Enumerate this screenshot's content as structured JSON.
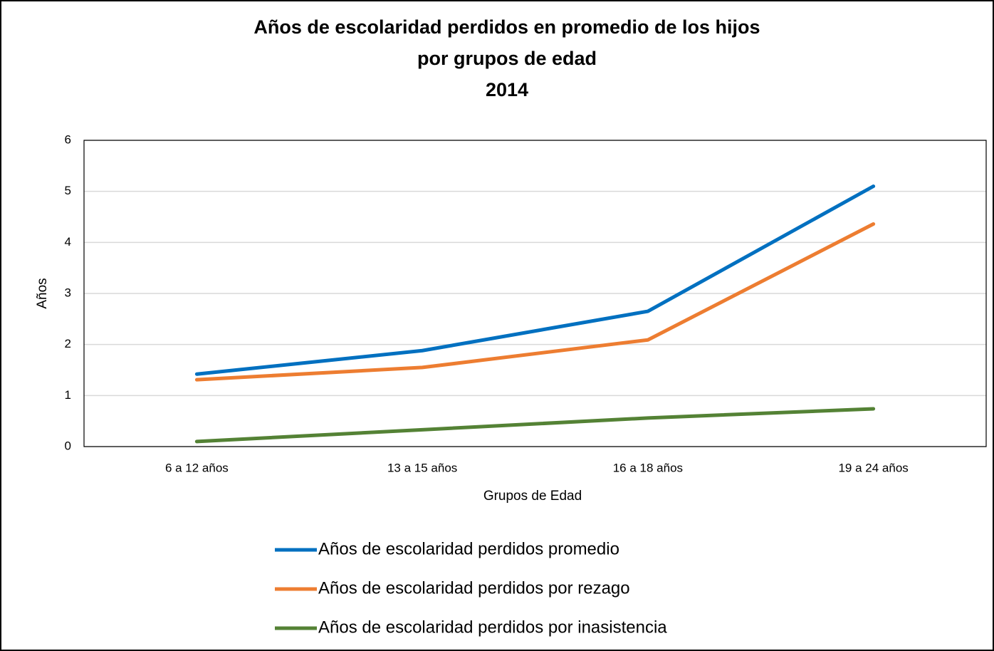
{
  "chart_data": {
    "type": "line",
    "title": [
      "Años de escolaridad perdidos en promedio de los hijos",
      "por grupos de edad",
      "2014"
    ],
    "x_label": "Grupos de Edad",
    "y_label": "Años",
    "categories": [
      "6 a 12 años",
      "13 a 15 años",
      "16 a 18 años",
      "19 a 24 años"
    ],
    "series": [
      {
        "name": "Años de escolaridad perdidos promedio",
        "color": "#0070c0",
        "values": [
          1.42,
          1.88,
          2.65,
          5.1
        ]
      },
      {
        "name": "Años de escolaridad perdidos por rezago",
        "color": "#ed7d31",
        "values": [
          1.31,
          1.55,
          2.09,
          4.36
        ]
      },
      {
        "name": "Años de escolaridad perdidos por inasistencia",
        "color": "#548235",
        "values": [
          0.1,
          0.33,
          0.56,
          0.74
        ]
      }
    ],
    "ylim": [
      0,
      6
    ],
    "yticks": [
      0,
      1,
      2,
      3,
      4,
      5,
      6
    ],
    "grid": true,
    "legend": "bottom"
  }
}
